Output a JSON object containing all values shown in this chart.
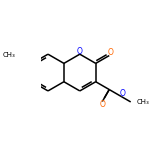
{
  "bg_color": "#ffffff",
  "bond_color": "#000000",
  "O_color": "#ff6600",
  "O_ring_color": "#0000ff",
  "bond_lw": 1.1,
  "figsize": [
    1.52,
    1.52
  ],
  "dpi": 100,
  "xlim": [
    -0.3,
    4.5
  ],
  "ylim": [
    -1.8,
    1.5
  ]
}
